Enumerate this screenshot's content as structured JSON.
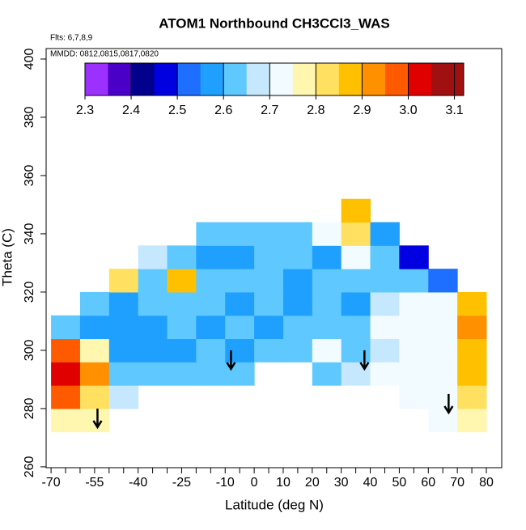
{
  "chart_data": {
    "type": "heatmap",
    "title": "ATOM1 Northbound CH3CCl3_WAS",
    "notes": [
      "Flts: 6,7,8,9",
      "MMDD: 0812,0815,0817,0820"
    ],
    "x_label": "Latitude (deg N)",
    "y_label": "Theta (C)",
    "xlim": [
      -71.7,
      85.3
    ],
    "ylim": [
      259.7,
      403.6
    ],
    "xticks": [
      -70,
      -55,
      -40,
      -25,
      -10,
      0,
      10,
      20,
      30,
      40,
      50,
      60,
      70,
      80
    ],
    "xminorticks": [
      -65,
      -60,
      -50,
      -45,
      -35,
      -30,
      -20,
      -15,
      -5,
      5,
      15,
      25,
      35,
      45,
      55,
      65,
      75
    ],
    "yticks": [
      260,
      280,
      300,
      320,
      340,
      360,
      380,
      400
    ],
    "lat_bins": [
      -70,
      -60,
      -50,
      -40,
      -30,
      -20,
      -10,
      0,
      10,
      20,
      30,
      40,
      50,
      60,
      70,
      80
    ],
    "theta_bins": [
      272,
      280,
      288,
      296,
      304,
      312,
      320,
      328,
      336,
      344,
      352
    ],
    "values": [
      [
        2.75,
        2.78,
        null,
        null,
        null,
        null,
        null,
        null,
        null,
        null,
        null,
        null,
        null,
        2.72,
        2.78
      ],
      [
        2.95,
        2.8,
        2.65,
        null,
        null,
        null,
        null,
        null,
        null,
        null,
        null,
        null,
        2.72,
        2.72,
        2.8
      ],
      [
        3.0,
        2.9,
        2.62,
        2.6,
        2.62,
        2.6,
        2.6,
        null,
        null,
        2.62,
        2.65,
        2.7,
        2.72,
        2.72,
        2.85
      ],
      [
        2.95,
        2.75,
        2.55,
        2.58,
        2.58,
        2.6,
        2.58,
        2.62,
        2.6,
        2.7,
        2.6,
        2.68,
        2.72,
        2.7,
        2.85
      ],
      [
        2.6,
        2.55,
        2.55,
        2.56,
        2.6,
        2.55,
        2.6,
        2.58,
        2.62,
        2.62,
        2.6,
        2.7,
        2.7,
        2.72,
        2.9
      ],
      [
        null,
        2.62,
        2.58,
        2.6,
        2.62,
        2.6,
        2.58,
        2.6,
        2.55,
        2.6,
        2.58,
        2.65,
        2.7,
        2.72,
        2.85
      ],
      [
        null,
        null,
        2.8,
        2.62,
        2.85,
        2.6,
        2.6,
        2.62,
        2.58,
        2.6,
        2.6,
        2.62,
        2.6,
        2.5,
        null
      ],
      [
        null,
        null,
        null,
        2.65,
        2.6,
        2.55,
        2.58,
        2.6,
        2.6,
        2.55,
        2.7,
        2.62,
        2.45,
        null,
        null
      ],
      [
        null,
        null,
        null,
        null,
        null,
        2.62,
        2.6,
        2.62,
        2.6,
        2.7,
        2.8,
        2.55,
        null,
        null,
        null
      ],
      [
        null,
        null,
        null,
        null,
        null,
        null,
        null,
        null,
        null,
        null,
        2.85,
        null,
        null,
        null,
        null
      ]
    ],
    "color_breaks": [
      2.3,
      2.35,
      2.4,
      2.45,
      2.5,
      2.55,
      2.6,
      2.65,
      2.7,
      2.75,
      2.8,
      2.85,
      2.9,
      2.95,
      3.0,
      3.05,
      3.12
    ],
    "palette": [
      "#9b30ff",
      "#4b00c8",
      "#00008c",
      "#0000e0",
      "#1e6fff",
      "#1fa0ff",
      "#5ec8ff",
      "#c6e8ff",
      "#f2fbff",
      "#fff6b0",
      "#ffe060",
      "#ffc000",
      "#ff9000",
      "#ff5a00",
      "#e00000",
      "#a01010"
    ],
    "colorbar_ticks": [
      2.3,
      2.4,
      2.5,
      2.6,
      2.7,
      2.8,
      2.9,
      {
        "value": 3,
        "label": "3.0"
      },
      3.1
    ],
    "arrows_x": [
      -54,
      -8,
      38,
      67
    ],
    "arrows_y": [
      280,
      300,
      300,
      285
    ]
  }
}
